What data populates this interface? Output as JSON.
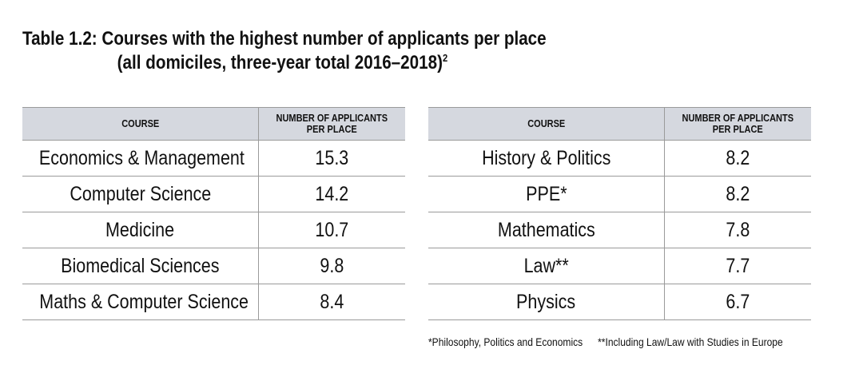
{
  "title": {
    "line1": "Table 1.2: Courses with the highest number of applicants per place",
    "line2": "(all domiciles, three-year total 2016–2018)",
    "footnote_ref": "2"
  },
  "table_left": {
    "headers": {
      "course": "COURSE",
      "value_line1": "NUMBER OF APPLICANTS",
      "value_line2": "PER PLACE"
    },
    "rows": [
      {
        "course": "Economics & Management",
        "value": "15.3"
      },
      {
        "course": "Computer Science",
        "value": "14.2"
      },
      {
        "course": "Medicine",
        "value": "10.7"
      },
      {
        "course": "Biomedical Sciences",
        "value": "9.8"
      },
      {
        "course": "Maths & Computer Science",
        "value": "8.4"
      }
    ]
  },
  "table_right": {
    "headers": {
      "course": "COURSE",
      "value_line1": "NUMBER OF APPLICANTS",
      "value_line2": "PER PLACE"
    },
    "rows": [
      {
        "course": "History & Politics",
        "value": "8.2"
      },
      {
        "course": "PPE*",
        "value": "8.2"
      },
      {
        "course": "Mathematics",
        "value": "7.8"
      },
      {
        "course": "Law**",
        "value": "7.7"
      },
      {
        "course": "Physics",
        "value": "6.7"
      }
    ]
  },
  "footnotes": {
    "ppe": "*Philosophy, Politics and Economics",
    "law": "**Including Law/Law with Studies in Europe"
  },
  "colors": {
    "header_background": "#d5d8df",
    "rule": "#9a9a9a",
    "text": "#111111"
  }
}
